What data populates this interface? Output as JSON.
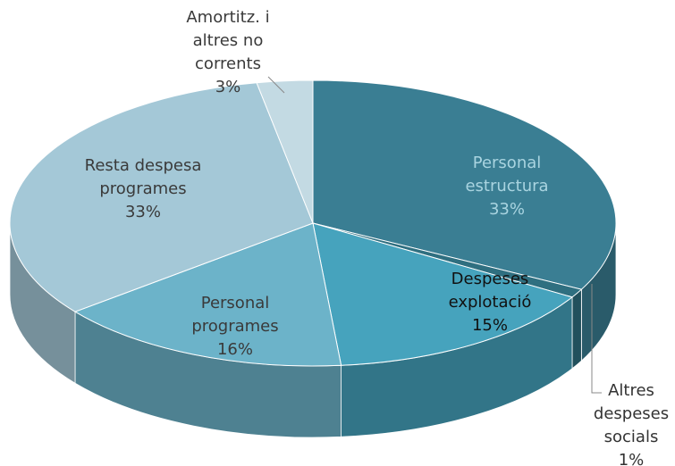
{
  "chart_data": {
    "type": "pie",
    "categories": [
      "Personal estructura",
      "Altres despeses socials",
      "Despeses explotació",
      "Personal programes",
      "Resta despesa programes",
      "Amortitz. i altres no corrents"
    ],
    "values": [
      33,
      1,
      15,
      16,
      33,
      3
    ],
    "value_labels": [
      "33%",
      "1%",
      "15%",
      "16%",
      "33%",
      "3%"
    ],
    "colors": [
      "#3a7e93",
      "#2f6f80",
      "#46a3bd",
      "#6cb3c9",
      "#a4c8d7",
      "#c3dae3"
    ]
  }
}
